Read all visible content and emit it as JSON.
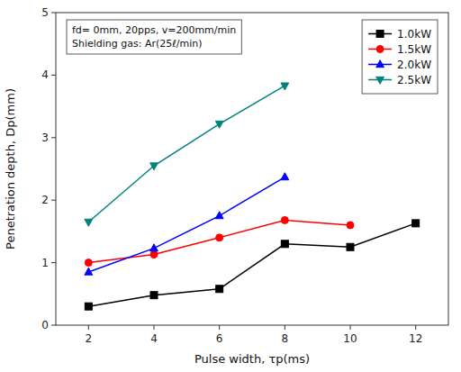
{
  "chart_data": {
    "type": "line",
    "x": [
      2,
      4,
      6,
      8,
      10,
      12
    ],
    "series": [
      {
        "name": "1.0kW",
        "color": "#000000",
        "marker": "square",
        "values": [
          0.3,
          0.48,
          0.58,
          1.3,
          1.25,
          1.63
        ]
      },
      {
        "name": "1.5kW",
        "color": "#ff0000",
        "marker": "circle",
        "values": [
          1.0,
          1.13,
          1.4,
          1.68,
          1.6,
          null
        ]
      },
      {
        "name": "2.0kW",
        "color": "#0000ff",
        "marker": "triangle-up",
        "values": [
          0.85,
          1.23,
          1.75,
          2.37,
          null,
          null
        ]
      },
      {
        "name": "2.5kW",
        "color": "#00827F",
        "marker": "triangle-down",
        "values": [
          1.65,
          2.55,
          3.22,
          3.83,
          null,
          null
        ]
      }
    ],
    "xlabel": "Pulse width, τp(ms)",
    "ylabel": "Penetration depth, Dp(mm)",
    "xlim": [
      1,
      13
    ],
    "ylim": [
      0,
      5
    ],
    "xticks": [
      2,
      4,
      6,
      8,
      10,
      12
    ],
    "yticks": [
      0,
      1,
      2,
      3,
      4,
      5
    ],
    "annotations": [
      "fd= 0mm, 20pps, v=200mm/min",
      "Shielding gas: Ar(25ℓ/min)"
    ],
    "legend": "upper right",
    "grid": false
  }
}
